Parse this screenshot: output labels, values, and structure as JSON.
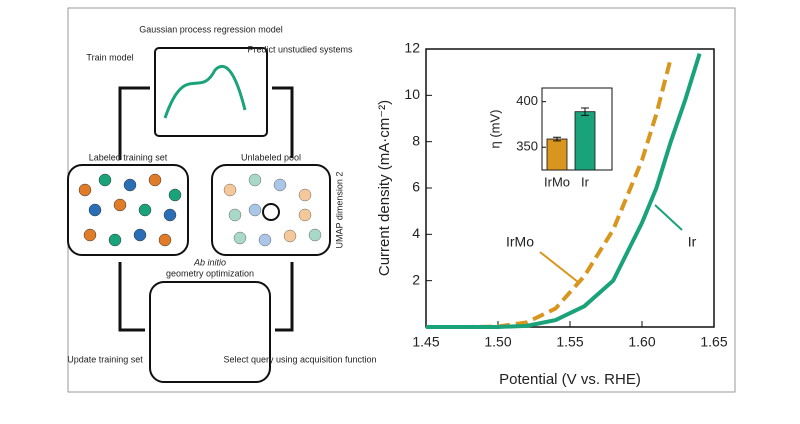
{
  "diagram": {
    "top": "Gaussian process regression model",
    "train": "Train model",
    "predict": "Predict unstudied systems",
    "labeled": "Labeled training set",
    "unlabeled": "Unlabeled pool",
    "umap": "UMAP dimension 2",
    "abinitio": "Ab initio",
    "geometry": "geometry optimization",
    "update": "Update training set",
    "select": "Select query using acquisition function"
  },
  "chart_data": [
    {
      "type": "line",
      "xlabel": "Potential (V vs. RHE)",
      "ylabel": "Current density (mA·cm⁻²)",
      "x": [
        1.45,
        1.48,
        1.5,
        1.52,
        1.54,
        1.56,
        1.58,
        1.6,
        1.61,
        1.62,
        1.63,
        1.64
      ],
      "series": [
        {
          "name": "IrMo",
          "color": "#d8961f",
          "dash": true,
          "values": [
            0,
            0,
            0.02,
            0.2,
            0.8,
            2.2,
            4.2,
            7.2,
            9.2,
            11.6,
            null,
            null
          ]
        },
        {
          "name": "Ir",
          "color": "#1aa37a",
          "dash": false,
          "values": [
            0,
            0,
            0,
            0.05,
            0.3,
            0.9,
            2.0,
            4.5,
            6.0,
            8.0,
            9.8,
            11.8
          ]
        }
      ],
      "xlim": [
        1.45,
        1.65
      ],
      "xticks": [
        1.45,
        {
          "value": 1.5,
          "label": "1.50"
        },
        1.55,
        {
          "value": 1.6,
          "label": "1.60"
        },
        1.65
      ],
      "ylim": [
        0,
        12
      ],
      "yticks": [
        2,
        4,
        6,
        8,
        10,
        12
      ]
    },
    {
      "type": "bar",
      "ylabel": "η (mV)",
      "categories": [
        "IrMo",
        "Ir"
      ],
      "values": [
        359,
        389
      ],
      "errors": [
        2,
        4
      ],
      "colors": [
        "#d8961f",
        "#1aa37a"
      ],
      "ylim": [
        325,
        415
      ],
      "yticks": [
        350,
        400
      ]
    }
  ]
}
